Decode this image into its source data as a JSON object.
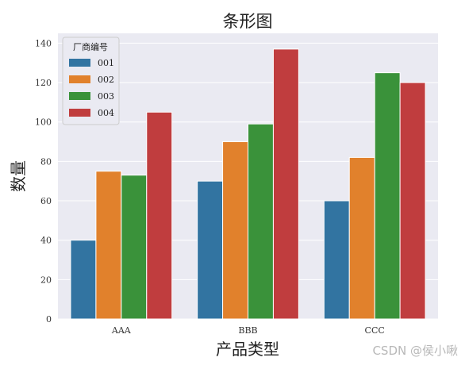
{
  "chart_data": {
    "type": "bar",
    "title": "条形图",
    "xlabel": "产品类型",
    "ylabel": "数量",
    "categories": [
      "AAA",
      "BBB",
      "CCC"
    ],
    "ylim": [
      0,
      145
    ],
    "yticks": [
      0,
      20,
      40,
      60,
      80,
      100,
      120,
      140
    ],
    "grid": true,
    "legend": {
      "title": "厂商编号",
      "position": "top-left"
    },
    "series": [
      {
        "name": "001",
        "color": "#3274a1",
        "values": [
          40,
          70,
          60
        ]
      },
      {
        "name": "002",
        "color": "#e1812c",
        "values": [
          75,
          90,
          82
        ]
      },
      {
        "name": "003",
        "color": "#3a923a",
        "values": [
          73,
          99,
          125
        ]
      },
      {
        "name": "004",
        "color": "#c03d3e",
        "values": [
          105,
          137,
          120
        ]
      }
    ],
    "plot_bg": "#eaeaf2"
  },
  "watermark": "CSDN @侯小啾"
}
